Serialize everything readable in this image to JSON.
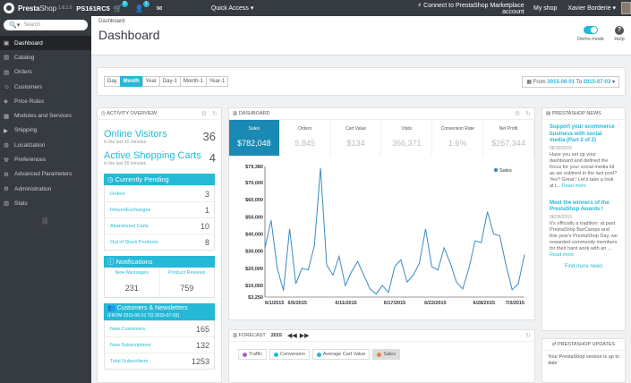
{
  "topbar": {
    "logo_bold": "Presta",
    "logo_light": "Shop",
    "version": "1.6.1.0",
    "shop_name": "PS161RC5",
    "orders_badge": "5",
    "customers_badge": "1",
    "quick_access": "Quick Access ▾",
    "connect": "Connect to PrestaShop Marketplace account",
    "my_shop": "My shop",
    "user": "Xavier Borderie ▾"
  },
  "sidebar": {
    "search_placeholder": "Search",
    "items": [
      {
        "icon": "▣",
        "label": "Dashboard"
      },
      {
        "icon": "▤",
        "label": "Catalog"
      },
      {
        "icon": "▤",
        "label": "Orders"
      },
      {
        "icon": "☺",
        "label": "Customers"
      },
      {
        "icon": "◈",
        "label": "Price Rules"
      },
      {
        "icon": "▦",
        "label": "Modules and Services"
      },
      {
        "icon": "▶",
        "label": "Shipping"
      },
      {
        "icon": "◍",
        "label": "Localization"
      },
      {
        "icon": "⚒",
        "label": "Preferences"
      },
      {
        "icon": "⚙",
        "label": "Advanced Parameters"
      },
      {
        "icon": "⚙",
        "label": "Administration"
      },
      {
        "icon": "▥",
        "label": "Stats"
      }
    ]
  },
  "header": {
    "breadcrumb": "Dashboard",
    "title": "Dashboard",
    "demo_mode": "Demo mode",
    "help": "Help"
  },
  "filter": {
    "periods": [
      "Day",
      "Month",
      "Year",
      "Day-1",
      "Month-1",
      "Year-1"
    ],
    "active_period": "Month",
    "from_label": "From",
    "from": "2015-06-01",
    "to_label": "To",
    "to": "2015-07-03"
  },
  "activity": {
    "title": "Activity overview",
    "online_label": "Online Visitors",
    "online_sub": "in the last 30 minutes",
    "online_value": "36",
    "carts_label": "Active Shopping Carts",
    "carts_sub": "in the last 30 minutes",
    "carts_value": "4",
    "pending_title": "Currently Pending",
    "pending": [
      {
        "label": "Orders",
        "value": "3"
      },
      {
        "label": "Return/Exchanges",
        "value": "1"
      },
      {
        "label": "Abandoned Carts",
        "value": "10"
      },
      {
        "label": "Out of Stock Products",
        "value": "8"
      }
    ],
    "notif_title": "Notifications",
    "new_messages_label": "New Messages",
    "new_messages": "231",
    "reviews_label": "Product Reviews",
    "reviews": "759",
    "cust_title": "Customers & Newsletters",
    "cust_sub": "(FROM 2015-06-01 TO 2015-07-03)",
    "cust": [
      {
        "label": "New Customers",
        "value": "165"
      },
      {
        "label": "New Subscriptions",
        "value": "132"
      },
      {
        "label": "Total Subscribers",
        "value": "1253"
      }
    ]
  },
  "dashboard": {
    "title": "Dashboard",
    "kpis": [
      {
        "label": "Sales",
        "value": "$782,048"
      },
      {
        "label": "Orders",
        "value": "5,845"
      },
      {
        "label": "Cart Value",
        "value": "$134"
      },
      {
        "label": "Visits",
        "value": "366,371"
      },
      {
        "label": "Conversion Rate",
        "value": "1.6%"
      },
      {
        "label": "Net Profit",
        "value": "$267,344"
      }
    ]
  },
  "chart_data": {
    "type": "line",
    "series": [
      {
        "name": "Sales",
        "values": [
          32000,
          48000,
          20000,
          7000,
          43000,
          11000,
          20000,
          19000,
          33000,
          78500,
          22000,
          16000,
          27000,
          10000,
          18000,
          24000,
          16000,
          8000,
          5000,
          10000,
          6000,
          21000,
          25000,
          12000,
          16000,
          23000,
          43000,
          21000,
          19000,
          32000,
          23000,
          12000,
          8000,
          20000,
          36000,
          35000,
          53000,
          40000,
          39000,
          22000,
          7500,
          11000,
          28000
        ]
      }
    ],
    "x_tick_labels": [
      "6/1/2015",
      "6/5/2015",
      "6/11/2015",
      "6/17/2015",
      "6/22/2015",
      "6/28/2015",
      "7/3/2015"
    ],
    "y_tick_labels": [
      "$79,380",
      "$70,000",
      "$60,000",
      "$50,000",
      "$40,000",
      "$30,000",
      "$20,000",
      "$10,000",
      "$3,250"
    ],
    "ylim": [
      3250,
      79380
    ],
    "legend": "Sales",
    "legend_position": "top-right",
    "color": "#3a8ac3"
  },
  "news": {
    "title": "PrestaShop news",
    "items": [
      {
        "title": "Support your ecommerce business with social media (Part 2 of 2)",
        "date": "06/30/2015",
        "body": "Have you set up your dashboard and defined the focus for your social media kit as we outlined in the last post? Yes? Great ! Let's take a look at t...",
        "more": "Read more"
      },
      {
        "title": "Meet the winners of the PrestaShop Awards !",
        "date": "06/26/2015",
        "body": "It's officially a tradition: at past PrestaShop BarCamps and this year's PrestaShop Day, we rewarded community members for their hard work with an ...",
        "more": "Read more"
      }
    ],
    "find_more": "Find more news"
  },
  "updates": {
    "title": "PrestaShop updates",
    "body": "Your PrestaShop version is up to date"
  },
  "forecast": {
    "title": "Forecast",
    "year": "2015",
    "buttons": [
      {
        "label": "Traffic",
        "color": "#a069ba"
      },
      {
        "label": "Conversion",
        "color": "#25b9d7"
      },
      {
        "label": "Average Cart Value",
        "color": "#25b9d7"
      },
      {
        "label": "Sales",
        "color": "#e5854a"
      }
    ]
  }
}
